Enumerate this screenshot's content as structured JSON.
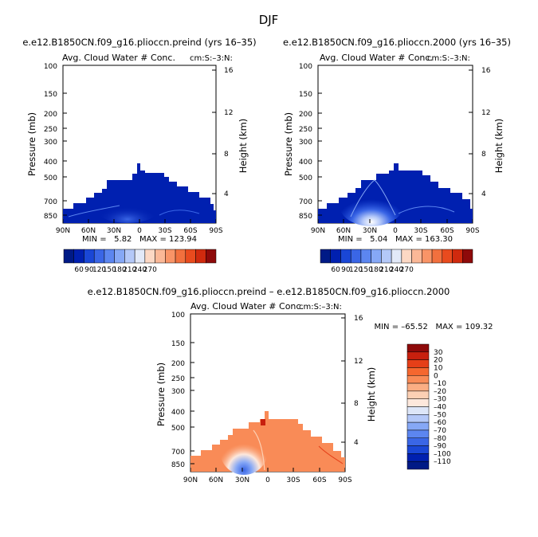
{
  "figure": {
    "season": "DJF",
    "titles": {
      "preind": "e.e12.B1850CN.f09_g16.plioccn.preind (yrs 16–35)",
      "pi2000": "e.e12.B1850CN.f09_g16.plioccn.2000 (yrs 16–35)",
      "diff": "e.e12.B1850CN.f09_g16.plioccn.preind – e.e12.B1850CN.f09_g16.plioccn.2000"
    },
    "panel_title": "Avg. Cloud Water # Conc.",
    "panel_units": "cm-3",
    "panel_units_label": "cm:S:–3:N:",
    "y_label": "Pressure (mb)",
    "y2_label": "Height (km)",
    "stats": {
      "preind": "MIN =   5.82   MAX = 123.94",
      "pi2000": "MIN =   5.04   MAX = 163.30",
      "diff": "MIN = –65.52   MAX = 109.32"
    }
  },
  "chart_data": [
    {
      "type": "heatmap",
      "id": "preind",
      "title": "Avg. Cloud Water # Conc.",
      "xlabel": "",
      "ylabel": "Pressure (mb)",
      "y2label": "Height (km)",
      "x_ticks": [
        "90N",
        "60N",
        "30N",
        "0",
        "30S",
        "60S",
        "90S"
      ],
      "x_range": [
        90,
        -90
      ],
      "y_ticks": [
        100,
        150,
        200,
        250,
        300,
        400,
        500,
        700,
        850
      ],
      "y_range": [
        100,
        925
      ],
      "y2_ticks": [
        16,
        12,
        8,
        4
      ],
      "min": 5.82,
      "max": 123.94,
      "colorbar": {
        "orientation": "horizontal",
        "labels": [
          "60",
          "90",
          "120",
          "150",
          "180",
          "210",
          "240",
          "270"
        ],
        "colors": [
          "#001a86",
          "#0020b0",
          "#1a47d6",
          "#3a66e6",
          "#5c86f0",
          "#86a8f6",
          "#b4c8f8",
          "#e2e9f8",
          "#fcd8c4",
          "#fbb897",
          "#f99467",
          "#f2703e",
          "#e94b1e",
          "#d02a0e",
          "#8e0a0a"
        ]
      },
      "description": "cloud top pressure by latitude",
      "top_profile": [
        [
          -90,
          850
        ],
        [
          -80,
          790
        ],
        [
          -70,
          710
        ],
        [
          -60,
          640
        ],
        [
          -45,
          570
        ],
        [
          -35,
          500
        ],
        [
          -10,
          490
        ],
        [
          0,
          420
        ],
        [
          5,
          400
        ],
        [
          15,
          440
        ],
        [
          30,
          480
        ],
        [
          45,
          520
        ],
        [
          55,
          560
        ],
        [
          65,
          610
        ],
        [
          75,
          680
        ],
        [
          85,
          760
        ],
        [
          90,
          830
        ]
      ]
    },
    {
      "type": "heatmap",
      "id": "pi2000",
      "title": "Avg. Cloud Water # Conc.",
      "xlabel": "",
      "ylabel": "Pressure (mb)",
      "y2label": "Height (km)",
      "x_ticks": [
        "90N",
        "60N",
        "30N",
        "0",
        "30S",
        "60S",
        "90S"
      ],
      "x_range": [
        90,
        -90
      ],
      "y_ticks": [
        100,
        150,
        200,
        250,
        300,
        400,
        500,
        700,
        850
      ],
      "y_range": [
        100,
        925
      ],
      "y2_ticks": [
        16,
        12,
        8,
        4
      ],
      "min": 5.04,
      "max": 163.3,
      "colorbar": {
        "orientation": "horizontal",
        "labels": [
          "60",
          "90",
          "120",
          "150",
          "180",
          "210",
          "240",
          "270"
        ],
        "colors": [
          "#001a86",
          "#0020b0",
          "#1a47d6",
          "#3a66e6",
          "#5c86f0",
          "#86a8f6",
          "#b4c8f8",
          "#e2e9f8",
          "#fcd8c4",
          "#fbb897",
          "#f99467",
          "#f2703e",
          "#e94b1e",
          "#d02a0e",
          "#8e0a0a"
        ]
      },
      "description": "cloud top pressure by latitude",
      "top_profile": [
        [
          -90,
          850
        ],
        [
          -80,
          790
        ],
        [
          -70,
          710
        ],
        [
          -60,
          640
        ],
        [
          -45,
          570
        ],
        [
          -35,
          500
        ],
        [
          -10,
          490
        ],
        [
          0,
          420
        ],
        [
          5,
          400
        ],
        [
          15,
          440
        ],
        [
          30,
          480
        ],
        [
          45,
          520
        ],
        [
          55,
          560
        ],
        [
          65,
          610
        ],
        [
          75,
          680
        ],
        [
          85,
          760
        ],
        [
          90,
          830
        ]
      ]
    },
    {
      "type": "heatmap",
      "id": "diff",
      "title": "Avg. Cloud Water # Conc.",
      "xlabel": "",
      "ylabel": "Pressure (mb)",
      "y2label": "Height (km)",
      "x_ticks": [
        "90N",
        "60N",
        "30N",
        "0",
        "30S",
        "60S",
        "90S"
      ],
      "x_range": [
        90,
        -90
      ],
      "y_ticks": [
        100,
        150,
        200,
        250,
        300,
        400,
        500,
        700,
        850
      ],
      "y_range": [
        100,
        925
      ],
      "y2_ticks": [
        16,
        12,
        8,
        4
      ],
      "min": -65.52,
      "max": 109.32,
      "colorbar": {
        "orientation": "vertical",
        "labels": [
          "30",
          "20",
          "10",
          "0",
          "–10",
          "–20",
          "–30",
          "–40",
          "–50",
          "–60",
          "–70",
          "–80",
          "–90",
          "–100",
          "–110"
        ],
        "colors": [
          "#8e0a0a",
          "#c8200e",
          "#e53f18",
          "#f5672f",
          "#f98b57",
          "#fbae84",
          "#fcd0b4",
          "#fde8dc",
          "#dde6f8",
          "#b4c8f8",
          "#86a8f6",
          "#5c86f0",
          "#3a66e6",
          "#1a47d6",
          "#0020b0",
          "#001a86"
        ]
      },
      "description": "cloud top pressure by latitude",
      "top_profile": [
        [
          -90,
          850
        ],
        [
          -80,
          790
        ],
        [
          -70,
          710
        ],
        [
          -60,
          640
        ],
        [
          -45,
          570
        ],
        [
          -35,
          500
        ],
        [
          -10,
          490
        ],
        [
          0,
          420
        ],
        [
          5,
          400
        ],
        [
          15,
          440
        ],
        [
          30,
          480
        ],
        [
          45,
          520
        ],
        [
          55,
          560
        ],
        [
          65,
          610
        ],
        [
          75,
          680
        ],
        [
          85,
          760
        ],
        [
          90,
          830
        ]
      ]
    }
  ]
}
